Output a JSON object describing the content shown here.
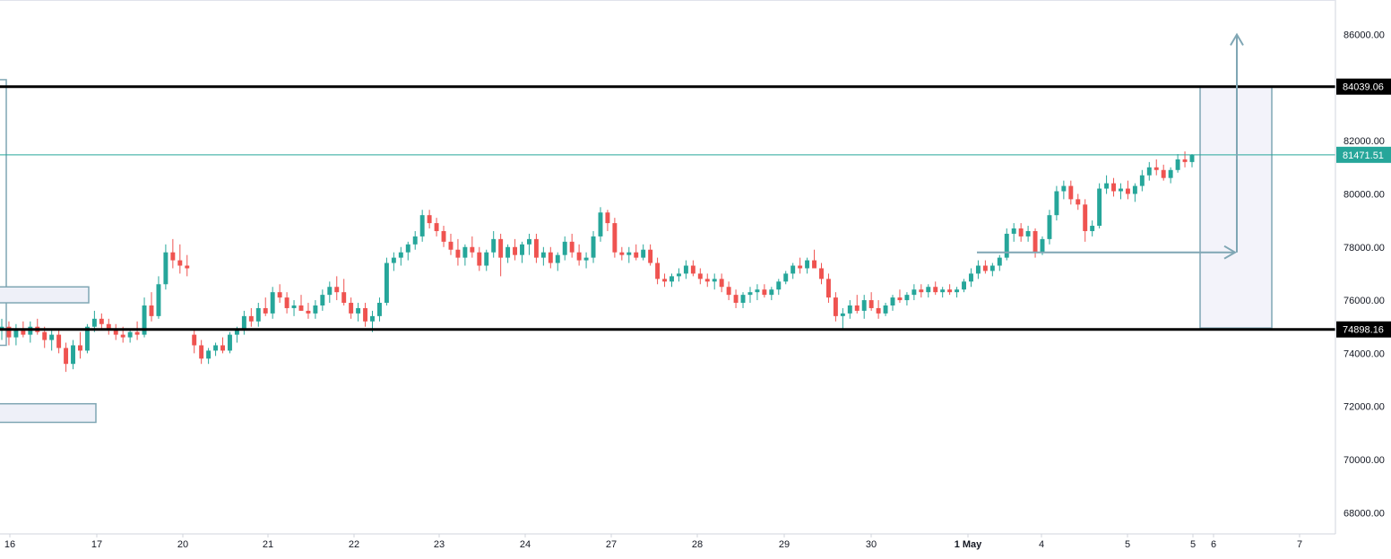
{
  "chart_data": {
    "type": "candlestick",
    "title": "",
    "xlabel": "",
    "ylabel": "",
    "ylim": [
      67200,
      87300
    ],
    "y_ticks": [
      68000,
      70000,
      72000,
      74000,
      76000,
      78000,
      80000,
      82000,
      84000,
      86000
    ],
    "y_tick_labels": [
      "68000.00",
      "70000.00",
      "72000.00",
      "74000.00",
      "76000.00",
      "78000.00",
      "80000.00",
      "82000.00",
      "84000.00",
      "86000.00"
    ],
    "x_tick_labels": [
      "16",
      "17",
      "20",
      "21",
      "22",
      "23",
      "24",
      "27",
      "28",
      "29",
      "30",
      "1 May",
      "4",
      "5",
      "5",
      "6",
      "7"
    ],
    "grid": false,
    "levels": [
      {
        "name": "resistance",
        "value": 84039.06,
        "label": "84039.06",
        "color": "#000000"
      },
      {
        "name": "support",
        "value": 74898.16,
        "label": "74898.16",
        "color": "#000000"
      },
      {
        "name": "last-price",
        "value": 81471.51,
        "label": "81471.51",
        "color": "#26a69a"
      }
    ],
    "zones": [
      {
        "name": "target-range",
        "from": 74950,
        "to": 84039.06,
        "color": "#f3f3fa",
        "border": "#7fa6b4"
      },
      {
        "name": "zone-left-1",
        "from": 74300,
        "to": 84300,
        "color": "#ffffff",
        "border": "#7fa6b4"
      },
      {
        "name": "zone-left-2",
        "from": 75900,
        "to": 76500,
        "color": "#eef0f8",
        "border": "#7fa6b4"
      },
      {
        "name": "zone-left-3",
        "from": 71400,
        "to": 72100,
        "color": "#eef0f8",
        "border": "#7fa6b4"
      }
    ],
    "arrows": [
      {
        "name": "projection-up",
        "from": 77800,
        "to": 86000,
        "color": "#7fa6b4"
      }
    ],
    "colors": {
      "up": "#26a69a",
      "down": "#ef5350",
      "annotation": "#7fa6b4"
    },
    "candles": [
      [
        74900,
        75300,
        74500,
        75000
      ],
      [
        75000,
        75200,
        74300,
        74600
      ],
      [
        74600,
        75100,
        74300,
        74900
      ],
      [
        74900,
        75200,
        74600,
        74700
      ],
      [
        74700,
        75200,
        74400,
        75000
      ],
      [
        75000,
        75300,
        74700,
        74800
      ],
      [
        74800,
        75000,
        74200,
        74500
      ],
      [
        74500,
        74900,
        74100,
        74700
      ],
      [
        74700,
        74900,
        74000,
        74200
      ],
      [
        74200,
        74400,
        73300,
        73600
      ],
      [
        73600,
        74500,
        73400,
        74300
      ],
      [
        74300,
        74800,
        73800,
        74100
      ],
      [
        74100,
        75100,
        74000,
        75000
      ],
      [
        75000,
        75600,
        74800,
        75300
      ],
      [
        75300,
        75500,
        74900,
        75100
      ],
      [
        75100,
        75300,
        74700,
        74900
      ],
      [
        74900,
        75100,
        74500,
        74700
      ],
      [
        74700,
        75000,
        74400,
        74600
      ],
      [
        74600,
        74900,
        74400,
        74800
      ],
      [
        74800,
        75200,
        74500,
        74700
      ],
      [
        74700,
        76100,
        74600,
        75800
      ],
      [
        75800,
        76300,
        75200,
        75400
      ],
      [
        75400,
        76900,
        75300,
        76600
      ],
      [
        76600,
        78100,
        76400,
        77800
      ],
      [
        77800,
        78300,
        77200,
        77500
      ],
      [
        77500,
        78100,
        77000,
        77300
      ],
      [
        77300,
        77700,
        76900,
        77200
      ],
      [
        74700,
        74900,
        74000,
        74300
      ],
      [
        74300,
        74500,
        73600,
        73800
      ],
      [
        73800,
        74200,
        73600,
        74100
      ],
      [
        74100,
        74400,
        73900,
        74300
      ],
      [
        74300,
        74600,
        74000,
        74100
      ],
      [
        74100,
        74800,
        74000,
        74700
      ],
      [
        74700,
        75000,
        74400,
        74900
      ],
      [
        74900,
        75600,
        74700,
        75400
      ],
      [
        75400,
        75700,
        75000,
        75200
      ],
      [
        75200,
        75900,
        75000,
        75700
      ],
      [
        75700,
        76100,
        75400,
        75500
      ],
      [
        75500,
        76500,
        75300,
        76300
      ],
      [
        76300,
        76600,
        75900,
        76100
      ],
      [
        76100,
        76300,
        75500,
        75700
      ],
      [
        75700,
        76000,
        75400,
        75800
      ],
      [
        75800,
        76200,
        75600,
        75600
      ],
      [
        75600,
        75900,
        75300,
        75500
      ],
      [
        75500,
        76000,
        75300,
        75800
      ],
      [
        75800,
        76400,
        75600,
        76200
      ],
      [
        76200,
        76700,
        75900,
        76500
      ],
      [
        76500,
        76900,
        76000,
        76300
      ],
      [
        76300,
        76800,
        75800,
        75900
      ],
      [
        75900,
        76100,
        75300,
        75500
      ],
      [
        75500,
        75900,
        75200,
        75700
      ],
      [
        75700,
        75900,
        75000,
        75200
      ],
      [
        75200,
        75600,
        74800,
        75400
      ],
      [
        75400,
        76100,
        75200,
        75900
      ],
      [
        75900,
        77600,
        75800,
        77400
      ],
      [
        77400,
        77800,
        77100,
        77600
      ],
      [
        77600,
        78000,
        77300,
        77800
      ],
      [
        77800,
        78200,
        77500,
        78100
      ],
      [
        78100,
        78600,
        77900,
        78400
      ],
      [
        78400,
        79400,
        78200,
        79200
      ],
      [
        79200,
        79400,
        78700,
        78900
      ],
      [
        78900,
        79100,
        78400,
        78600
      ],
      [
        78600,
        78800,
        78000,
        78200
      ],
      [
        78200,
        78500,
        77700,
        77900
      ],
      [
        77900,
        78300,
        77300,
        77600
      ],
      [
        77600,
        78100,
        77300,
        78000
      ],
      [
        78000,
        78400,
        77600,
        77800
      ],
      [
        77800,
        78000,
        77100,
        77300
      ],
      [
        77300,
        77900,
        77100,
        77800
      ],
      [
        77800,
        78600,
        77600,
        78300
      ],
      [
        78300,
        78500,
        76900,
        77600
      ],
      [
        77600,
        78100,
        77400,
        78000
      ],
      [
        78000,
        78300,
        77500,
        77700
      ],
      [
        77700,
        78200,
        77400,
        78100
      ],
      [
        78100,
        78500,
        77700,
        78300
      ],
      [
        78300,
        78500,
        77400,
        77600
      ],
      [
        77600,
        78000,
        77300,
        77800
      ],
      [
        77800,
        78000,
        77200,
        77400
      ],
      [
        77400,
        77800,
        77100,
        77700
      ],
      [
        77700,
        78400,
        77500,
        78200
      ],
      [
        78200,
        78500,
        77600,
        77800
      ],
      [
        77800,
        78100,
        77300,
        77500
      ],
      [
        77500,
        77800,
        77200,
        77600
      ],
      [
        77600,
        78600,
        77400,
        78400
      ],
      [
        78400,
        79500,
        78200,
        79300
      ],
      [
        79300,
        79400,
        78600,
        78900
      ],
      [
        78900,
        79100,
        77600,
        77800
      ],
      [
        77800,
        78000,
        77500,
        77700
      ],
      [
        77700,
        78000,
        77400,
        77800
      ],
      [
        77800,
        78100,
        77500,
        77600
      ],
      [
        77600,
        78100,
        77500,
        77900
      ],
      [
        77900,
        78100,
        77300,
        77400
      ],
      [
        77400,
        77600,
        76600,
        76800
      ],
      [
        76800,
        77000,
        76500,
        76700
      ],
      [
        76700,
        77000,
        76500,
        76900
      ],
      [
        76900,
        77200,
        76700,
        77000
      ],
      [
        77000,
        77500,
        76800,
        77300
      ],
      [
        77300,
        77500,
        76900,
        77000
      ],
      [
        77000,
        77200,
        76600,
        76800
      ],
      [
        76800,
        77000,
        76500,
        76700
      ],
      [
        76700,
        77000,
        76400,
        76800
      ],
      [
        76800,
        77000,
        76300,
        76500
      ],
      [
        76500,
        76700,
        76000,
        76200
      ],
      [
        76200,
        76400,
        75700,
        75900
      ],
      [
        75900,
        76300,
        75700,
        76200
      ],
      [
        76200,
        76500,
        75900,
        76300
      ],
      [
        76300,
        76600,
        76000,
        76400
      ],
      [
        76400,
        76600,
        76100,
        76200
      ],
      [
        76200,
        76500,
        76000,
        76400
      ],
      [
        76400,
        76800,
        76200,
        76700
      ],
      [
        76700,
        77100,
        76600,
        77000
      ],
      [
        77000,
        77400,
        76800,
        77300
      ],
      [
        77300,
        77600,
        77000,
        77200
      ],
      [
        77200,
        77600,
        77000,
        77500
      ],
      [
        77500,
        77900,
        77300,
        77200
      ],
      [
        77200,
        77400,
        76600,
        76800
      ],
      [
        76800,
        77000,
        75900,
        76100
      ],
      [
        76100,
        76300,
        75200,
        75400
      ],
      [
        75400,
        75700,
        74900,
        75500
      ],
      [
        75500,
        76000,
        75300,
        75800
      ],
      [
        75800,
        76200,
        75500,
        75600
      ],
      [
        75600,
        76200,
        75300,
        76000
      ],
      [
        76000,
        76300,
        75600,
        75700
      ],
      [
        75700,
        76000,
        75300,
        75500
      ],
      [
        75500,
        75900,
        75400,
        75800
      ],
      [
        75800,
        76200,
        75600,
        76100
      ],
      [
        76100,
        76400,
        75900,
        76000
      ],
      [
        76000,
        76300,
        75800,
        76200
      ],
      [
        76200,
        76600,
        76000,
        76400
      ],
      [
        76400,
        76600,
        76100,
        76300
      ],
      [
        76300,
        76600,
        76100,
        76500
      ],
      [
        76500,
        76700,
        76200,
        76300
      ],
      [
        76300,
        76500,
        76100,
        76400
      ],
      [
        76400,
        76600,
        76200,
        76300
      ],
      [
        76300,
        76500,
        76100,
        76400
      ],
      [
        76400,
        76800,
        76300,
        76700
      ],
      [
        76700,
        77200,
        76500,
        77000
      ],
      [
        77000,
        77500,
        76800,
        77300
      ],
      [
        77300,
        77500,
        77000,
        77100
      ],
      [
        77100,
        77400,
        76900,
        77300
      ],
      [
        77300,
        77700,
        77100,
        77600
      ],
      [
        77600,
        78700,
        77500,
        78500
      ],
      [
        78500,
        78900,
        78200,
        78700
      ],
      [
        78700,
        78900,
        78200,
        78400
      ],
      [
        78400,
        78800,
        78200,
        78600
      ],
      [
        78600,
        78700,
        77600,
        77800
      ],
      [
        77800,
        78400,
        77700,
        78300
      ],
      [
        78300,
        79400,
        78100,
        79200
      ],
      [
        79200,
        80300,
        79000,
        80100
      ],
      [
        80100,
        80500,
        79800,
        80300
      ],
      [
        80300,
        80500,
        79600,
        79800
      ],
      [
        79800,
        80000,
        79400,
        79600
      ],
      [
        79600,
        79800,
        78200,
        78600
      ],
      [
        78600,
        79000,
        78400,
        78800
      ],
      [
        78800,
        80400,
        78700,
        80200
      ],
      [
        80200,
        80700,
        80000,
        80400
      ],
      [
        80400,
        80600,
        79900,
        80100
      ],
      [
        80100,
        80400,
        79800,
        80200
      ],
      [
        80200,
        80500,
        79800,
        80000
      ],
      [
        80000,
        80400,
        79700,
        80300
      ],
      [
        80300,
        80900,
        80100,
        80700
      ],
      [
        80700,
        81200,
        80500,
        81000
      ],
      [
        81000,
        81300,
        80700,
        80900
      ],
      [
        80900,
        81100,
        80500,
        80600
      ],
      [
        80600,
        81000,
        80400,
        80900
      ],
      [
        80900,
        81500,
        80800,
        81300
      ],
      [
        81300,
        81600,
        81000,
        81200
      ],
      [
        81200,
        81500,
        81000,
        81470
      ]
    ]
  }
}
